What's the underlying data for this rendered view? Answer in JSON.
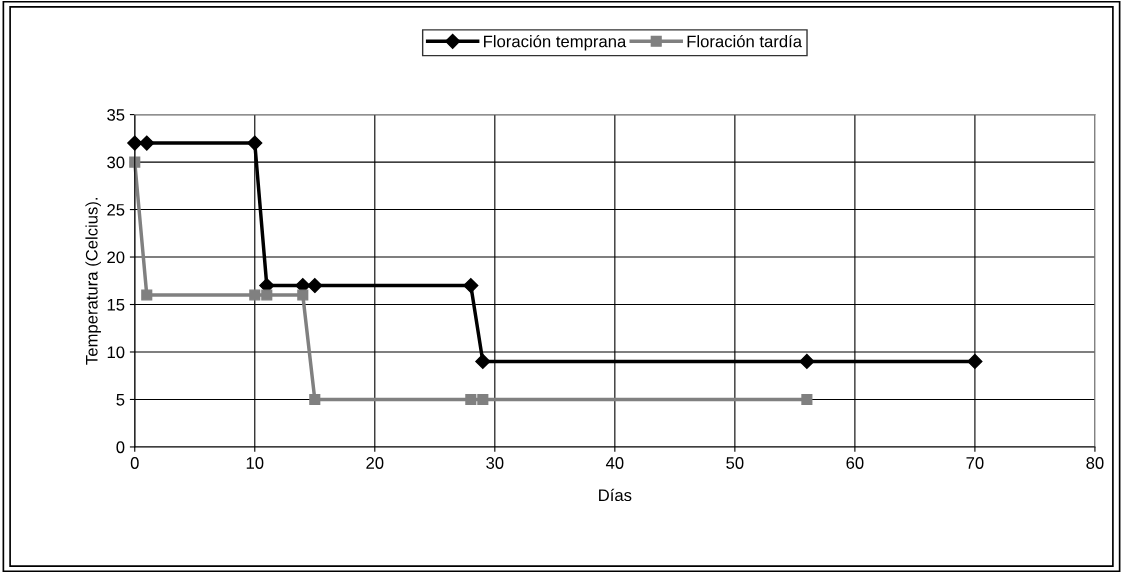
{
  "chart_data": {
    "type": "line",
    "xlabel": "Días",
    "ylabel": "Temperatura (Celcius).",
    "xlim": [
      0,
      80
    ],
    "xticks": [
      0,
      10,
      20,
      30,
      40,
      50,
      60,
      70,
      80
    ],
    "ylim": [
      0,
      35
    ],
    "yticks": [
      0,
      5,
      10,
      15,
      20,
      25,
      30,
      35
    ],
    "grid": true,
    "legend": "top",
    "line_style": "solid",
    "series": [
      {
        "name": "Floración temprana",
        "color": "#000000",
        "marker": "diamond",
        "x": [
          0,
          1,
          10,
          11,
          14,
          15,
          28,
          29,
          56,
          70
        ],
        "values": [
          32,
          32,
          32,
          17,
          17,
          17,
          17,
          9,
          9,
          9
        ]
      },
      {
        "name": "Floración tardía",
        "color": "#808080",
        "marker": "square",
        "x": [
          0,
          1,
          10,
          11,
          14,
          15,
          28,
          29,
          56
        ],
        "values": [
          30,
          16,
          16,
          16,
          16,
          5,
          5,
          5,
          5
        ]
      }
    ]
  }
}
